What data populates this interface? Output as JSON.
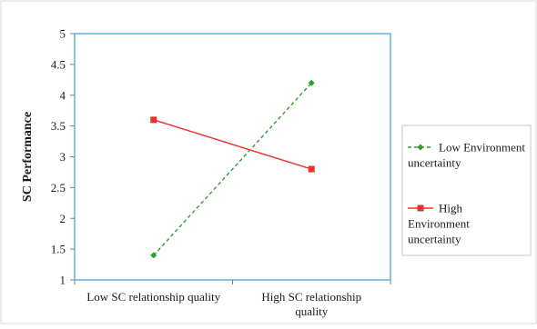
{
  "chart_data": {
    "type": "line",
    "title": "",
    "xlabel": "",
    "ylabel": "SC Performance",
    "ylim": [
      1,
      5
    ],
    "yticks": [
      "1",
      "1.5",
      "2",
      "2.5",
      "3",
      "3.5",
      "4",
      "4.5",
      "5"
    ],
    "categories": [
      [
        "Low SC relationship quality"
      ],
      [
        "High SC relationship",
        "quality"
      ]
    ],
    "grid": false,
    "legend": "right",
    "series": [
      {
        "name": [
          "Low Environment",
          "uncertainty"
        ],
        "values": [
          1.4,
          4.2
        ],
        "color": "#2ca02c",
        "line_style": "dashed",
        "marker": "diamond"
      },
      {
        "name": [
          "High",
          "Environment",
          "uncertainty"
        ],
        "values": [
          3.6,
          2.8
        ],
        "color": "#e8332b",
        "line_style": "solid",
        "marker": "square"
      }
    ],
    "plot_border_color": "#4aa3d8"
  }
}
